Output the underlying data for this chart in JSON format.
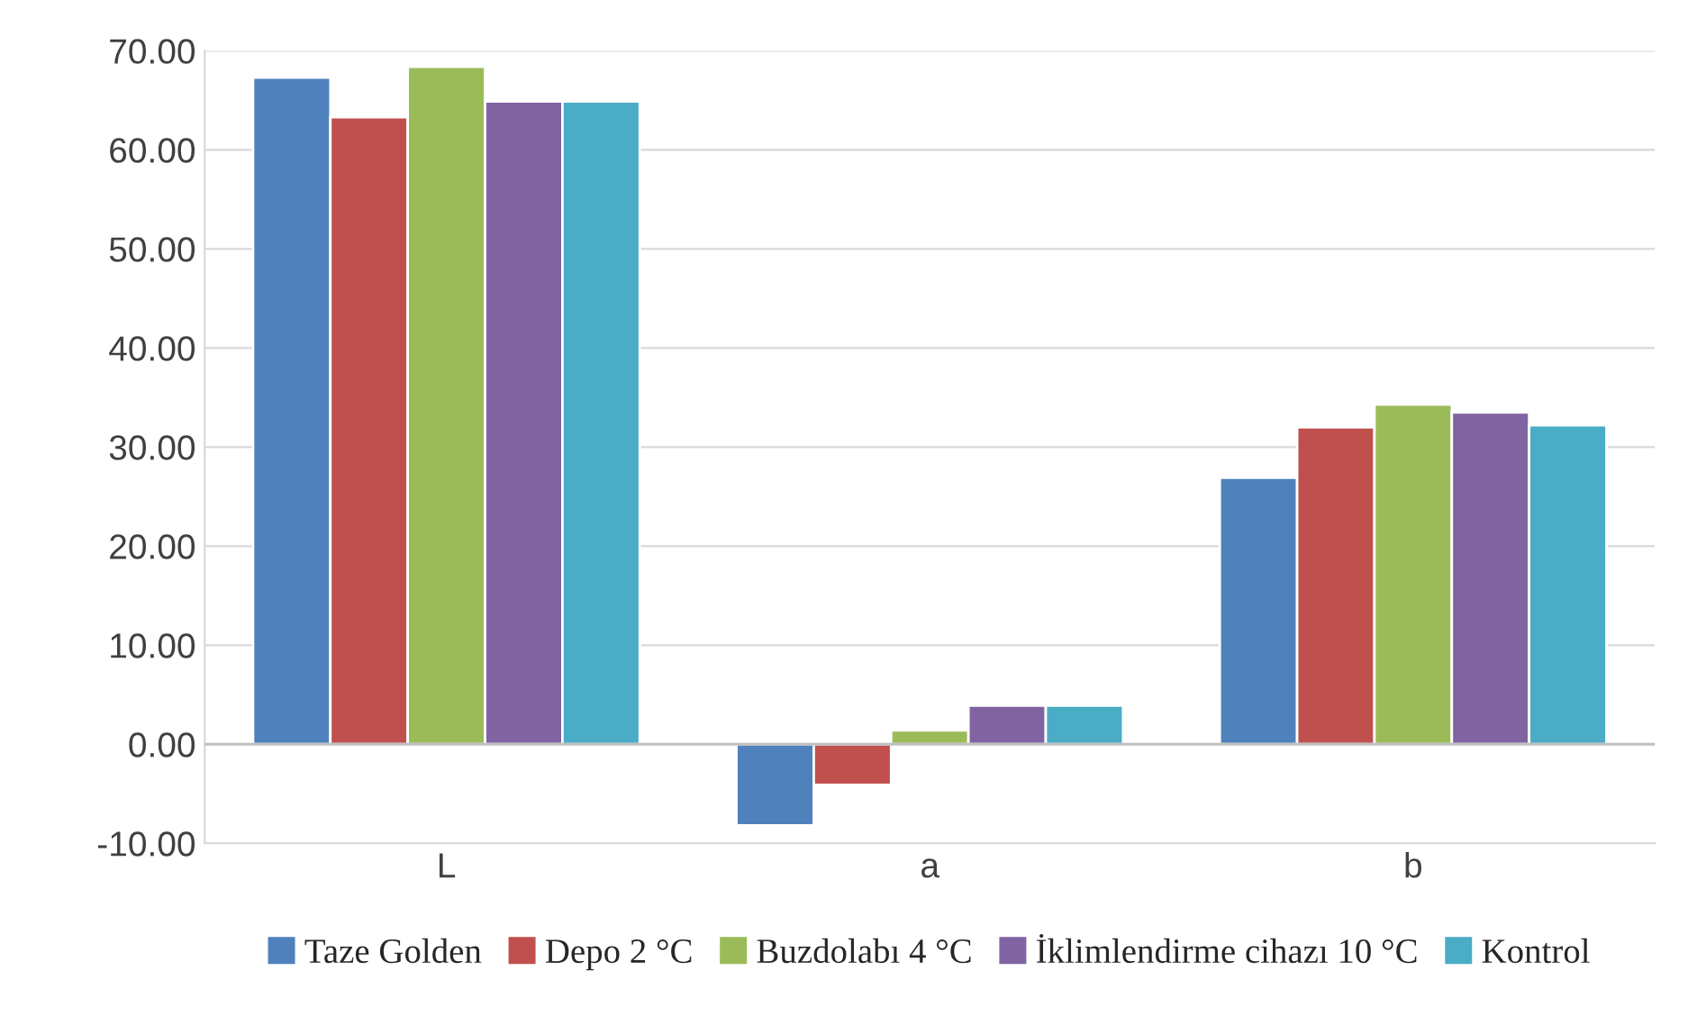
{
  "chart_data": {
    "type": "bar",
    "categories": [
      "L",
      "a",
      "b"
    ],
    "series": [
      {
        "name": "Taze Golden",
        "color": "#4f81bd",
        "values": [
          67.3,
          -8.2,
          26.9
        ]
      },
      {
        "name": "Depo 2 °C",
        "color": "#c0504d",
        "values": [
          63.3,
          -4.1,
          32.0
        ]
      },
      {
        "name": "Buzdolabı 4 °C",
        "color": "#9bbb59",
        "values": [
          68.4,
          1.4,
          34.3
        ]
      },
      {
        "name": "İklimlendirme cihazı 10 °C",
        "color": "#8064a2",
        "values": [
          64.9,
          3.9,
          33.5
        ]
      },
      {
        "name": "Kontrol",
        "color": "#4bacc6",
        "values": [
          64.9,
          3.9,
          32.2
        ]
      }
    ],
    "ylim": [
      -10,
      70
    ],
    "yticks": [
      {
        "value": -10,
        "label": "-10.00"
      },
      {
        "value": 0,
        "label": "0.00"
      },
      {
        "value": 10,
        "label": "10.00"
      },
      {
        "value": 20,
        "label": "20.00"
      },
      {
        "value": 30,
        "label": "30.00"
      },
      {
        "value": 40,
        "label": "40.00"
      },
      {
        "value": 50,
        "label": "50.00"
      },
      {
        "value": 60,
        "label": "60.00"
      },
      {
        "value": 70,
        "label": "70.00"
      }
    ],
    "grid": "y",
    "legend": "bottom"
  }
}
